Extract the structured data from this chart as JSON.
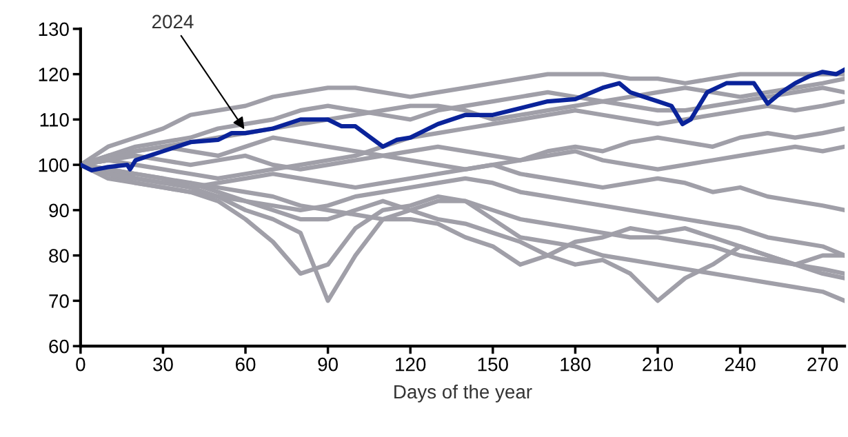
{
  "chart_data": {
    "type": "line",
    "xlabel": "Days of the year",
    "x": [
      0,
      10,
      20,
      30,
      40,
      50,
      60,
      70,
      80,
      90,
      100,
      110,
      120,
      130,
      140,
      150,
      160,
      170,
      180,
      190,
      200,
      210,
      220,
      230,
      240,
      250,
      260,
      270,
      278
    ],
    "xlim": [
      0,
      278
    ],
    "ylim": [
      60,
      130
    ],
    "xticks": [
      0,
      30,
      60,
      90,
      120,
      150,
      180,
      210,
      240,
      270
    ],
    "yticks": [
      60,
      70,
      80,
      90,
      100,
      110,
      120,
      130
    ],
    "grid": false,
    "marker": "none",
    "line_style": "solid",
    "annotations": [
      {
        "text": "2024",
        "x": 60,
        "y": 107.5
      }
    ],
    "series": [
      {
        "color": "#a09fa8",
        "values": [
          100,
          104,
          106,
          108,
          111,
          112,
          113,
          115,
          116,
          117,
          117,
          116,
          115,
          116,
          117,
          118,
          119,
          120,
          120,
          120,
          119,
          119,
          118,
          119,
          120,
          120,
          120,
          120,
          120
        ]
      },
      {
        "color": "#a09fa8",
        "values": [
          100,
          97,
          96,
          95,
          94,
          92,
          88,
          83,
          76,
          78,
          86,
          90,
          91,
          93,
          92,
          90,
          88,
          87,
          86,
          85,
          84,
          84,
          83,
          82,
          80,
          79,
          78,
          77,
          76
        ]
      },
      {
        "color": "#a09fa8",
        "values": [
          100,
          98,
          96,
          95,
          94,
          93,
          90,
          88,
          85,
          70,
          80,
          88,
          90,
          92,
          92,
          88,
          84,
          83,
          82,
          80,
          79,
          78,
          77,
          76,
          75,
          74,
          73,
          72,
          70
        ]
      },
      {
        "color": "#a09fa8",
        "values": [
          100,
          99,
          98,
          97,
          96,
          94,
          92,
          90,
          88,
          88,
          90,
          92,
          90,
          88,
          87,
          85,
          83,
          80,
          78,
          79,
          76,
          70,
          75,
          78,
          82,
          80,
          78,
          80,
          80
        ]
      },
      {
        "color": "#a09fa8",
        "values": [
          100,
          99,
          97,
          96,
          96,
          95,
          94,
          93,
          91,
          90,
          89,
          88,
          88,
          87,
          84,
          82,
          78,
          80,
          83,
          84,
          86,
          85,
          86,
          84,
          82,
          80,
          78,
          76,
          75
        ]
      },
      {
        "color": "#a09fa8",
        "values": [
          100,
          101,
          102,
          101,
          100,
          101,
          102,
          100,
          99,
          100,
          101,
          102,
          103,
          104,
          103,
          102,
          101,
          103,
          104,
          103,
          105,
          106,
          105,
          104,
          106,
          107,
          106,
          107,
          108
        ]
      },
      {
        "color": "#a09fa8",
        "values": [
          100,
          102,
          104,
          105,
          106,
          108,
          109,
          110,
          112,
          113,
          112,
          111,
          110,
          112,
          113,
          114,
          115,
          116,
          115,
          114,
          115,
          116,
          117,
          116,
          115,
          116,
          117,
          118,
          119
        ]
      },
      {
        "color": "#a09fa8",
        "values": [
          100,
          98,
          97,
          96,
          95,
          96,
          97,
          98,
          97,
          96,
          95,
          96,
          97,
          98,
          99,
          100,
          98,
          97,
          96,
          95,
          96,
          97,
          96,
          94,
          95,
          93,
          92,
          91,
          90
        ]
      },
      {
        "color": "#a09fa8",
        "values": [
          100,
          101,
          100,
          99,
          98,
          97,
          98,
          99,
          100,
          101,
          102,
          104,
          106,
          107,
          108,
          109,
          110,
          111,
          112,
          111,
          110,
          109,
          110,
          111,
          112,
          113,
          112,
          113,
          114
        ]
      },
      {
        "color": "#a09fa8",
        "values": [
          100,
          99,
          98,
          97,
          95,
          93,
          92,
          91,
          90,
          91,
          93,
          94,
          95,
          96,
          97,
          96,
          94,
          93,
          92,
          91,
          90,
          89,
          88,
          87,
          86,
          84,
          83,
          82,
          80
        ]
      },
      {
        "color": "#a09fa8",
        "values": [
          100,
          102,
          103,
          104,
          103,
          102,
          104,
          106,
          105,
          104,
          103,
          102,
          101,
          100,
          99,
          100,
          101,
          102,
          103,
          101,
          100,
          99,
          100,
          101,
          102,
          103,
          104,
          103,
          104
        ]
      },
      {
        "color": "#a09fa8",
        "values": [
          100,
          101,
          103,
          104,
          105,
          106,
          107,
          108,
          109,
          110,
          111,
          112,
          113,
          113,
          112,
          110,
          111,
          112,
          113,
          114,
          113,
          112,
          112,
          113,
          114,
          115,
          116,
          117,
          116
        ]
      },
      {
        "color": "#0a239a",
        "x": [
          0,
          4,
          10,
          17,
          18,
          20,
          30,
          40,
          50,
          55,
          60,
          70,
          80,
          90,
          95,
          100,
          110,
          115,
          120,
          130,
          140,
          150,
          160,
          170,
          180,
          190,
          196,
          200,
          205,
          210,
          215,
          219,
          222,
          228,
          235,
          245,
          250,
          255,
          260,
          265,
          270,
          275,
          278
        ],
        "values": [
          100,
          98.8,
          99.5,
          100,
          99,
          101,
          103,
          105,
          105.5,
          107,
          107,
          108,
          110,
          110,
          108.5,
          108.5,
          104,
          105.5,
          106,
          109,
          111,
          111,
          112.5,
          114,
          114.5,
          117,
          118,
          116,
          115,
          114,
          113,
          109,
          110,
          116,
          118,
          118,
          113.5,
          116,
          118,
          119.5,
          120.5,
          120,
          121
        ]
      }
    ]
  }
}
